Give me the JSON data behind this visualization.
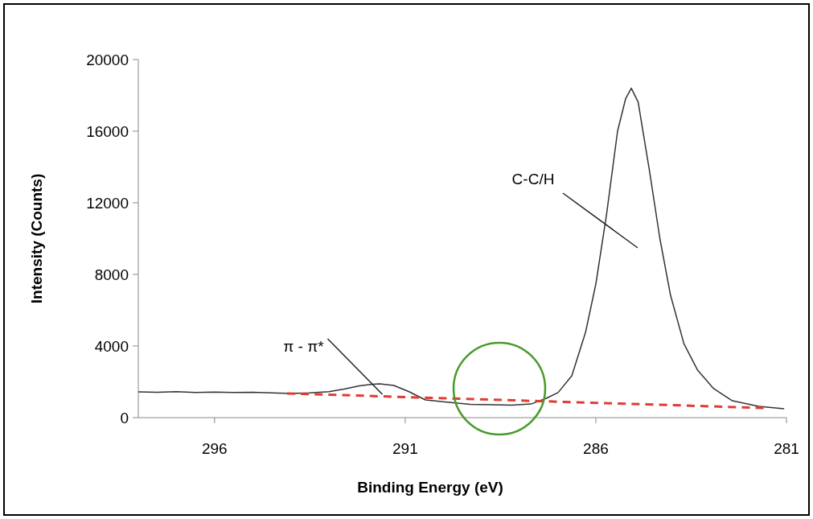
{
  "chart_data": {
    "type": "line",
    "xlabel": "Binding Energy (eV)",
    "ylabel": "Intensity (Counts)",
    "xlim": [
      298,
      281
    ],
    "xticks": [
      296,
      291,
      286,
      281
    ],
    "ylim": [
      0,
      20000
    ],
    "yticks": [
      0,
      4000,
      8000,
      12000,
      16000,
      20000
    ],
    "grid": false,
    "series": [
      {
        "color": "#333333",
        "line_style": "solid",
        "x": [
          298,
          297.5,
          297,
          296.5,
          296,
          295.5,
          295,
          294.5,
          294,
          293.5,
          293,
          292.6,
          292.2,
          291.9,
          291.67,
          291.3,
          290.9,
          290.47,
          289.85,
          289.3,
          288.7,
          288.2,
          287.7,
          287.3,
          286.99,
          286.63,
          286.27,
          286,
          285.72,
          285.43,
          285.22,
          285.07,
          284.89,
          284.59,
          284.32,
          284.04,
          283.69,
          283.33,
          282.91,
          282.42,
          281.73,
          281.06
        ],
        "values": [
          1440,
          1420,
          1450,
          1400,
          1430,
          1410,
          1420,
          1380,
          1350,
          1380,
          1450,
          1600,
          1780,
          1850,
          1890,
          1800,
          1450,
          990,
          850,
          740,
          720,
          700,
          760,
          1080,
          1400,
          2340,
          4760,
          7460,
          11330,
          16000,
          17800,
          18400,
          17620,
          13750,
          10000,
          6830,
          4130,
          2650,
          1620,
          940,
          630,
          490
        ]
      },
      {
        "color": "#e03c31",
        "line_style": "dashed",
        "x": [
          294.1,
          281.6
        ],
        "values": [
          1350,
          540
        ]
      }
    ],
    "annotations": [
      {
        "text": "π - π*",
        "x": 291.6,
        "y": 1300
      },
      "C-C/H"
    ]
  }
}
